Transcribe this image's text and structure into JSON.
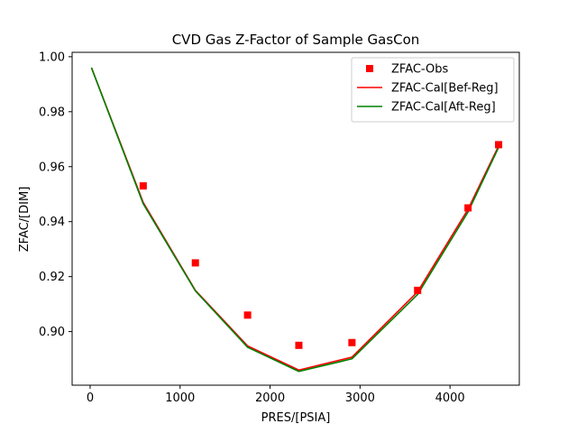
{
  "chart_data": {
    "type": "line",
    "title": "CVD Gas Z-Factor of Sample GasCon",
    "xlabel": "PRES/[PSIA]",
    "ylabel": "ZFAC/[DIM]",
    "xlim": [
      -200,
      4770
    ],
    "ylim": [
      0.8805,
      1.0016
    ],
    "xticks": [
      0,
      1000,
      2000,
      3000,
      4000
    ],
    "xtick_labels": [
      "0",
      "1000",
      "2000",
      "3000",
      "4000"
    ],
    "yticks": [
      0.9,
      0.92,
      0.94,
      0.96,
      0.98,
      1.0
    ],
    "ytick_labels": [
      "0.90",
      "0.92",
      "0.94",
      "0.96",
      "0.98",
      "1.00"
    ],
    "grid": false,
    "legend_position": "top-right",
    "series": [
      {
        "name": "ZFAC-Obs",
        "kind": "scatter",
        "marker": "square",
        "color": "#ff0000",
        "x": [
          590,
          1170,
          1750,
          2320,
          2910,
          3640,
          4200,
          4540
        ],
        "y": [
          0.953,
          0.925,
          0.906,
          0.895,
          0.896,
          0.915,
          0.945,
          0.968
        ]
      },
      {
        "name": "ZFAC-Cal[Bef-Reg]",
        "kind": "line",
        "color": "#ff0000",
        "x": [
          15,
          590,
          1170,
          1750,
          2320,
          2910,
          3640,
          4200,
          4540
        ],
        "y": [
          0.996,
          0.947,
          0.915,
          0.8948,
          0.886,
          0.8907,
          0.9145,
          0.9445,
          0.9675
        ]
      },
      {
        "name": "ZFAC-Cal[Aft-Reg]",
        "kind": "line",
        "color": "#008000",
        "x": [
          15,
          590,
          1170,
          1750,
          2320,
          2910,
          3640,
          4200,
          4540
        ],
        "y": [
          0.996,
          0.9465,
          0.9148,
          0.8943,
          0.8855,
          0.8901,
          0.9135,
          0.9435,
          0.967
        ]
      }
    ]
  }
}
